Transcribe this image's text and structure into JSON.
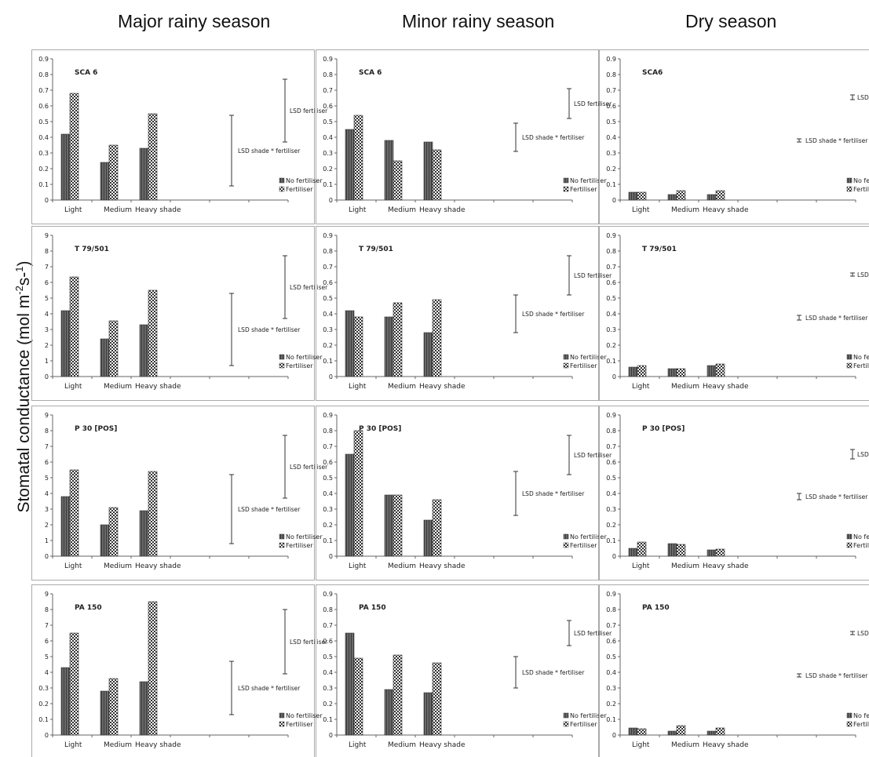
{
  "column_headers": [
    "Major rainy season",
    "Minor rainy season",
    "Dry season"
  ],
  "y_axis_label": "Stomatal conductance (mol m",
  "y_axis_label_sup1": "-2",
  "y_axis_label_mid": "s-",
  "y_axis_label_sup2": "1",
  "y_axis_label_end": ")",
  "colors": {
    "no_fertiliser": "#555555",
    "fertiliser_a": "#ffffff",
    "fertiliser_b": "#333333",
    "frame": "#aaaaaa",
    "axis": "#666666"
  },
  "chart_data": [
    {
      "type": "bar",
      "col": 0,
      "row": 0,
      "title": "SCA 6",
      "categories": [
        "Light",
        "Medium",
        "Heavy shade"
      ],
      "series": [
        {
          "name": "No fertiliser",
          "values": [
            0.42,
            0.24,
            0.33
          ]
        },
        {
          "name": "Fertiliser",
          "values": [
            0.68,
            0.35,
            0.55
          ]
        }
      ],
      "ylim": [
        0,
        0.9
      ],
      "ticks": [
        "0.9",
        "0.8",
        "0.7",
        "0.6",
        "0.5",
        "0.4",
        "0.3",
        "0.2",
        "0.1",
        "0"
      ],
      "lsd_fert": {
        "label": "LSD fertiliser",
        "range": [
          0.37,
          0.77
        ]
      },
      "lsd_shade": {
        "label": "LSD shade * fertiliser",
        "range": [
          0.09,
          0.54
        ]
      }
    },
    {
      "type": "bar",
      "col": 1,
      "row": 0,
      "title": "SCA 6",
      "categories": [
        "Light",
        "Medium",
        "Heavy shade"
      ],
      "series": [
        {
          "name": "No fertiliser",
          "values": [
            0.45,
            0.38,
            0.37
          ]
        },
        {
          "name": "Fertiliser",
          "values": [
            0.54,
            0.25,
            0.32
          ]
        }
      ],
      "ylim": [
        0,
        0.9
      ],
      "ticks": [
        "0.9",
        "0.8",
        "0.7",
        "0.6",
        "0.5",
        "0.4",
        "0.3",
        "0.2",
        "0.1",
        "0"
      ],
      "lsd_fert": {
        "label": "LSD fertiliser",
        "range": [
          0.52,
          0.71
        ]
      },
      "lsd_shade": {
        "label": "LSD shade * fertiliser",
        "range": [
          0.31,
          0.49
        ]
      }
    },
    {
      "type": "bar",
      "col": 2,
      "row": 0,
      "title": "SCA6",
      "categories": [
        "Light",
        "Medium",
        "Heavy shade"
      ],
      "series": [
        {
          "name": "No fertiliser",
          "values": [
            0.05,
            0.035,
            0.035
          ]
        },
        {
          "name": "Fertiliser",
          "values": [
            0.05,
            0.06,
            0.06
          ]
        }
      ],
      "ylim": [
        0,
        0.9
      ],
      "ticks": [
        "0.9",
        "0.8",
        "0.7",
        "0.6",
        "0.5",
        "0.4",
        "0.3",
        "0.2",
        "0.1",
        "0"
      ],
      "lsd_fert": {
        "label": "LSD fertiliser",
        "range": [
          0.64,
          0.67
        ]
      },
      "lsd_shade": {
        "label": "LSD shade * fertiliser",
        "range": [
          0.37,
          0.39
        ]
      }
    },
    {
      "type": "bar",
      "col": 0,
      "row": 1,
      "title": "T 79/501",
      "categories": [
        "Light",
        "Medium",
        "Heavy shade"
      ],
      "series": [
        {
          "name": "No fertiliser",
          "values": [
            0.42,
            0.24,
            0.33
          ]
        },
        {
          "name": "Fertiliser",
          "values": [
            0.635,
            0.355,
            0.55
          ]
        }
      ],
      "ylim": [
        0,
        0.9
      ],
      "ticks": [
        "9",
        "8",
        "7",
        "6",
        "5",
        "4",
        "3",
        "2",
        "1",
        "0"
      ],
      "lsd_fert": {
        "label": "LSD fertiliser",
        "range": [
          0.37,
          0.77
        ]
      },
      "lsd_shade": {
        "label": "LSD shade * fertiliser",
        "range": [
          0.07,
          0.53
        ]
      }
    },
    {
      "type": "bar",
      "col": 1,
      "row": 1,
      "title": "T 79/501",
      "categories": [
        "Light",
        "Medium",
        "Heavy shade"
      ],
      "series": [
        {
          "name": "No fertiliser",
          "values": [
            0.42,
            0.38,
            0.28
          ]
        },
        {
          "name": "Fertiliser",
          "values": [
            0.38,
            0.47,
            0.49
          ]
        }
      ],
      "ylim": [
        0,
        0.9
      ],
      "ticks": [
        "0.9",
        "0.8",
        "0.7",
        "0.6",
        "0.5",
        "0.4",
        "0.3",
        "0.2",
        "0.1",
        "0"
      ],
      "lsd_fert": {
        "label": "LSD fertiliser",
        "range": [
          0.52,
          0.77
        ]
      },
      "lsd_shade": {
        "label": "LSD shade * fertiliser",
        "range": [
          0.28,
          0.52
        ]
      }
    },
    {
      "type": "bar",
      "col": 2,
      "row": 1,
      "title": "T 79/501",
      "categories": [
        "Light",
        "Medium",
        "Heavy shade"
      ],
      "series": [
        {
          "name": "No fertiliser",
          "values": [
            0.06,
            0.05,
            0.07
          ]
        },
        {
          "name": "Fertiliser",
          "values": [
            0.07,
            0.05,
            0.08
          ]
        }
      ],
      "ylim": [
        0,
        0.9
      ],
      "ticks": [
        "0.9",
        "0.8",
        "0.7",
        "0.6",
        "0.5",
        "0.4",
        "0.3",
        "0.2",
        "0.1",
        "0"
      ],
      "lsd_fert": {
        "label": "LSD fertiliser",
        "range": [
          0.64,
          0.66
        ]
      },
      "lsd_shade": {
        "label": "LSD shade * fertiliser",
        "range": [
          0.36,
          0.39
        ]
      }
    },
    {
      "type": "bar",
      "col": 0,
      "row": 2,
      "title": "P 30 [POS]",
      "categories": [
        "Light",
        "Medium",
        "Heavy shade"
      ],
      "series": [
        {
          "name": "No fertiliser",
          "values": [
            0.38,
            0.2,
            0.29
          ]
        },
        {
          "name": "Fertiliser",
          "values": [
            0.55,
            0.31,
            0.54
          ]
        }
      ],
      "ylim": [
        0,
        0.9
      ],
      "ticks": [
        "9",
        "8",
        "7",
        "6",
        "5",
        "4",
        "3",
        "2",
        "1",
        "0"
      ],
      "lsd_fert": {
        "label": "LSD fertiliser",
        "range": [
          0.37,
          0.77
        ]
      },
      "lsd_shade": {
        "label": "LSD shade * fertiliser",
        "range": [
          0.08,
          0.52
        ]
      }
    },
    {
      "type": "bar",
      "col": 1,
      "row": 2,
      "title": "P 30 [POS]",
      "categories": [
        "Light",
        "Medium",
        "Heavy shade"
      ],
      "series": [
        {
          "name": "No fertiliser",
          "values": [
            0.65,
            0.39,
            0.23
          ]
        },
        {
          "name": "Fertiliser",
          "values": [
            0.8,
            0.39,
            0.36
          ]
        }
      ],
      "ylim": [
        0,
        0.9
      ],
      "ticks": [
        "0.9",
        "0.8",
        "0.7",
        "0.6",
        "0.5",
        "0.4",
        "0.3",
        "0.2",
        "0.1",
        "0"
      ],
      "lsd_fert": {
        "label": "LSD fertiliser",
        "range": [
          0.52,
          0.77
        ]
      },
      "lsd_shade": {
        "label": "LSD shade * fertiliser",
        "range": [
          0.26,
          0.54
        ]
      }
    },
    {
      "type": "bar",
      "col": 2,
      "row": 2,
      "title": "P 30 [POS]",
      "categories": [
        "Light",
        "Medium",
        "Heavy shade"
      ],
      "series": [
        {
          "name": "No fertiliser",
          "values": [
            0.05,
            0.08,
            0.04
          ]
        },
        {
          "name": "Fertiliser",
          "values": [
            0.09,
            0.075,
            0.045
          ]
        }
      ],
      "ylim": [
        0,
        0.9
      ],
      "ticks": [
        "0.9",
        "0.8",
        "0.7",
        "0.6",
        "0.5",
        "0.4",
        "0.3",
        "0.2",
        "0.1",
        "0"
      ],
      "lsd_fert": {
        "label": "LSD fertiliser",
        "range": [
          0.62,
          0.68
        ]
      },
      "lsd_shade": {
        "label": "LSD shade * fertiliser",
        "range": [
          0.36,
          0.4
        ]
      }
    },
    {
      "type": "bar",
      "col": 0,
      "row": 3,
      "title": "PA 150",
      "categories": [
        "Light",
        "Medium",
        "Heavy shade"
      ],
      "series": [
        {
          "name": "No fertiliser",
          "values": [
            0.43,
            0.28,
            0.34
          ]
        },
        {
          "name": "Fertiliser",
          "values": [
            0.65,
            0.36,
            0.85
          ]
        }
      ],
      "ylim": [
        0,
        0.9
      ],
      "ticks": [
        "9",
        "8",
        "7",
        "6",
        "5",
        "4",
        "0.3",
        "0.2",
        "0.1",
        "0"
      ],
      "lsd_fert": {
        "label": "LSD fertiliser",
        "range": [
          0.39,
          0.8
        ]
      },
      "lsd_shade": {
        "label": "LSD shade * fertiliser",
        "range": [
          0.13,
          0.47
        ]
      }
    },
    {
      "type": "bar",
      "col": 1,
      "row": 3,
      "title": "PA 150",
      "categories": [
        "Light",
        "Medium",
        "Heavy shade"
      ],
      "series": [
        {
          "name": "No fertiliser",
          "values": [
            0.65,
            0.29,
            0.27
          ]
        },
        {
          "name": "Fertiliser",
          "values": [
            0.49,
            0.51,
            0.46
          ]
        }
      ],
      "ylim": [
        0,
        0.9
      ],
      "ticks": [
        "0.9",
        "0.8",
        "0.7",
        "0.6",
        "0.5",
        "0.4",
        "0.3",
        "0.2",
        "0.1",
        "0"
      ],
      "lsd_fert": {
        "label": "LSD fertiliser",
        "range": [
          0.57,
          0.73
        ]
      },
      "lsd_shade": {
        "label": "LSD shade * fertiliser",
        "range": [
          0.3,
          0.5
        ]
      }
    },
    {
      "type": "bar",
      "col": 2,
      "row": 3,
      "title": "PA 150",
      "categories": [
        "Light",
        "Medium",
        "Heavy shade"
      ],
      "series": [
        {
          "name": "No fertiliser",
          "values": [
            0.045,
            0.025,
            0.025
          ]
        },
        {
          "name": "Fertiliser",
          "values": [
            0.04,
            0.06,
            0.045
          ]
        }
      ],
      "ylim": [
        0,
        0.9
      ],
      "ticks": [
        "0.9",
        "0.8",
        "0.7",
        "0.6",
        "0.5",
        "0.4",
        "0.3",
        "0.2",
        "0.1",
        "0"
      ],
      "lsd_fert": {
        "label": "LSD fertiliser",
        "range": [
          0.64,
          0.66
        ]
      },
      "lsd_shade": {
        "label": "LSD shade * fertiliser",
        "range": [
          0.37,
          0.39
        ]
      }
    }
  ]
}
